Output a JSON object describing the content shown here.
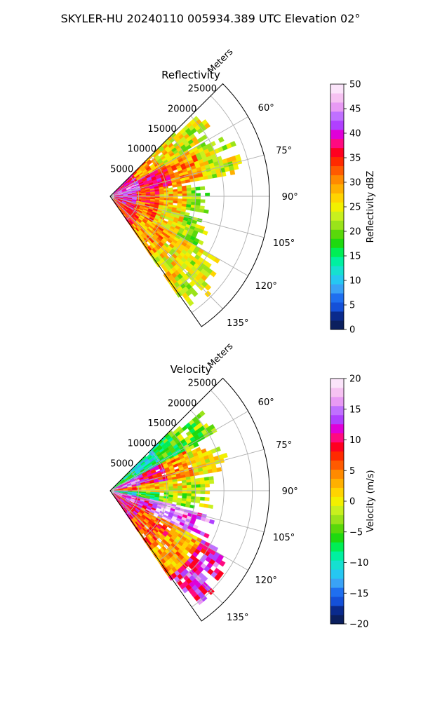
{
  "figure_title": "SKYLER-HU  20240110  005934.389 UTC Elevation 02°",
  "chart_data": [
    {
      "type": "heatmap",
      "projection": "polar-sector",
      "title": "Reflectivity",
      "range_axis_label": "Meters",
      "range_ticks": [
        5000,
        10000,
        15000,
        20000,
        25000
      ],
      "range_tick_labels": [
        "5000",
        "10000",
        "15000",
        "20000",
        "25000"
      ],
      "range_max": 28000,
      "azimuth_range_deg": [
        45,
        145
      ],
      "azimuth_ticks": [
        60,
        75,
        90,
        105,
        120,
        135
      ],
      "azimuth_tick_labels": [
        "60°",
        "75°",
        "90°",
        "105°",
        "120°",
        "135°"
      ],
      "grid": true,
      "colorbar": {
        "label": "Reflectivity dBZ",
        "min": 0,
        "max": 50,
        "ticks": [
          0,
          5,
          10,
          15,
          20,
          25,
          30,
          35,
          40,
          45,
          50
        ],
        "tick_labels": [
          "0",
          "5",
          "10",
          "15",
          "20",
          "25",
          "30",
          "35",
          "40",
          "45",
          "50"
        ],
        "colors": [
          "#0b1f5e",
          "#0a2a8c",
          "#1450d8",
          "#1f6fef",
          "#3aa2f6",
          "#26c7f2",
          "#16e0d0",
          "#00f0a0",
          "#00ee55",
          "#1ed90f",
          "#59d80a",
          "#9ae31a",
          "#c8f01e",
          "#f2f000",
          "#ffd400",
          "#ffb000",
          "#ff8a00",
          "#ff5a00",
          "#ff2a00",
          "#ff0020",
          "#ff0a80",
          "#e000d8",
          "#b040ff",
          "#c070ff",
          "#e89af4",
          "#f6c2f2",
          "#fbe4fa"
        ]
      },
      "field": {
        "description_values": "gate values in dBZ (approximate)",
        "bands": [
          {
            "az": [
              45,
              60
            ],
            "range": [
              0,
              20000
            ],
            "values": [
              38,
              30,
              25,
              24
            ]
          },
          {
            "az": [
              60,
              80
            ],
            "range": [
              0,
              22000
            ],
            "values": [
              42,
              36,
              30,
              24
            ]
          },
          {
            "az": [
              80,
              100
            ],
            "range": [
              0,
              17000
            ],
            "values": [
              40,
              34,
              28,
              22
            ]
          },
          {
            "az": [
              100,
              120
            ],
            "range": [
              0,
              17000
            ],
            "values": [
              38,
              32,
              26,
              22
            ]
          },
          {
            "az": [
              120,
              145
            ],
            "range": [
              0,
              24000
            ],
            "values": [
              34,
              30,
              26,
              24
            ]
          }
        ]
      }
    },
    {
      "type": "heatmap",
      "projection": "polar-sector",
      "title": "Velocity",
      "range_axis_label": "Meters",
      "range_ticks": [
        5000,
        10000,
        15000,
        20000,
        25000
      ],
      "range_tick_labels": [
        "5000",
        "10000",
        "15000",
        "20000",
        "25000"
      ],
      "range_max": 28000,
      "azimuth_range_deg": [
        45,
        145
      ],
      "azimuth_ticks": [
        60,
        75,
        90,
        105,
        120,
        135
      ],
      "azimuth_tick_labels": [
        "60°",
        "75°",
        "90°",
        "105°",
        "120°",
        "135°"
      ],
      "grid": true,
      "colorbar": {
        "label": "Velocity (m/s)",
        "min": -20,
        "max": 20,
        "ticks": [
          -20,
          -15,
          -10,
          -5,
          0,
          5,
          10,
          15,
          20
        ],
        "tick_labels": [
          "−20",
          "−15",
          "−10",
          "−5",
          "0",
          "5",
          "10",
          "15",
          "20"
        ],
        "colors": [
          "#0b1f5e",
          "#0a2a8c",
          "#1450d8",
          "#1f6fef",
          "#3aa2f6",
          "#26c7f2",
          "#16e0d0",
          "#00f0a0",
          "#00ee55",
          "#1ed90f",
          "#59d80a",
          "#9ae31a",
          "#c8f01e",
          "#f2f000",
          "#ffd400",
          "#ffb000",
          "#ff8a00",
          "#ff5a00",
          "#ff2a00",
          "#ff0020",
          "#ff0a80",
          "#e000d8",
          "#b040ff",
          "#c070ff",
          "#e89af4",
          "#f6c2f2",
          "#fbe4fa"
        ]
      },
      "field": {
        "description_values": "gate values in m/s (approximate)",
        "bands": [
          {
            "az": [
              45,
              62
            ],
            "range": [
              0,
              20000
            ],
            "values": [
              -8,
              -10,
              -6,
              -4
            ]
          },
          {
            "az": [
              62,
              80
            ],
            "range": [
              0,
              20000
            ],
            "values": [
              14,
              10,
              4,
              0
            ]
          },
          {
            "az": [
              80,
              92
            ],
            "range": [
              0,
              17000
            ],
            "values": [
              6,
              2,
              0,
              -2
            ]
          },
          {
            "az": [
              92,
              102
            ],
            "range": [
              0,
              17000
            ],
            "values": [
              -10,
              -6,
              -4,
              -2
            ]
          },
          {
            "az": [
              102,
              118
            ],
            "range": [
              0,
              17000
            ],
            "values": [
              14,
              12,
              16,
              14
            ]
          },
          {
            "az": [
              118,
              145
            ],
            "range": [
              0,
              24000
            ],
            "values": [
              10,
              6,
              3,
              12
            ]
          }
        ]
      }
    }
  ]
}
